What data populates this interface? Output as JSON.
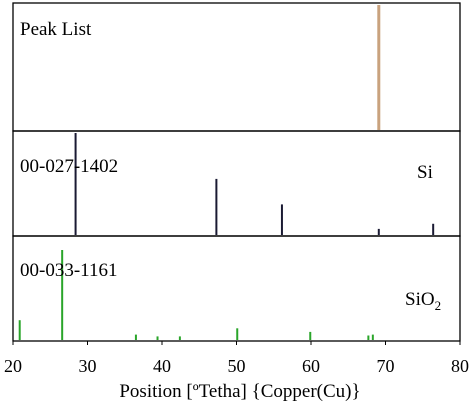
{
  "chart_data": {
    "type": "bar",
    "xlabel": "Position [ºTetha] {Copper(Cu)}",
    "xlim": [
      20,
      80
    ],
    "xticks": [
      "20",
      "30",
      "40",
      "50",
      "60",
      "70",
      "80"
    ],
    "panels": [
      {
        "label": "Peak List",
        "phase": "",
        "color": "#c9a27e",
        "peaks": [
          {
            "x": 69.1,
            "y": 100
          }
        ]
      },
      {
        "label": "00-027-1402",
        "phase": "Si",
        "color": "#1a1a33",
        "peaks": [
          {
            "x": 28.4,
            "y": 100
          },
          {
            "x": 47.3,
            "y": 55
          },
          {
            "x": 56.1,
            "y": 30
          },
          {
            "x": 69.1,
            "y": 6
          },
          {
            "x": 76.4,
            "y": 11
          }
        ]
      },
      {
        "label": "00-033-1161",
        "phase_main": "SiO",
        "phase_sub": "2",
        "color": "#2aa52a",
        "peaks": [
          {
            "x": 20.9,
            "y": 22
          },
          {
            "x": 26.6,
            "y": 100
          },
          {
            "x": 36.5,
            "y": 6
          },
          {
            "x": 39.4,
            "y": 4
          },
          {
            "x": 42.4,
            "y": 4
          },
          {
            "x": 50.1,
            "y": 13
          },
          {
            "x": 59.9,
            "y": 9
          },
          {
            "x": 67.7,
            "y": 5
          },
          {
            "x": 68.3,
            "y": 6
          }
        ]
      }
    ]
  }
}
